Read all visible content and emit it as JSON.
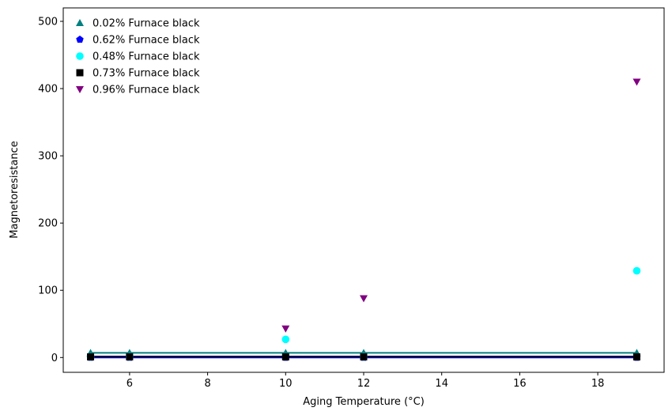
{
  "chart_data": {
    "type": "scatter",
    "title": "",
    "xlabel": "Aging Temperature (°C)",
    "ylabel": "Magnetoresistance",
    "xlim": [
      4.3,
      19.7
    ],
    "ylim": [
      -22,
      520
    ],
    "xticks": [
      6,
      8,
      10,
      12,
      14,
      16,
      18
    ],
    "yticks": [
      0,
      100,
      200,
      300,
      400,
      500
    ],
    "grid": false,
    "legend_position": "top-left",
    "series": [
      {
        "name": "0.02% Furnace black",
        "color": "#008080",
        "marker": "triangle-up",
        "points": [
          [
            5,
            7
          ],
          [
            6,
            7
          ],
          [
            10,
            7
          ],
          [
            12,
            7
          ],
          [
            19,
            7
          ]
        ],
        "fit_line": [
          [
            5,
            7
          ],
          [
            19,
            7
          ]
        ]
      },
      {
        "name": "0.62% Furnace black",
        "color": "#0000ff",
        "marker": "pentagon",
        "points": [
          [
            5,
            0
          ],
          [
            6,
            0
          ],
          [
            10,
            0
          ],
          [
            12,
            0
          ],
          [
            19,
            0
          ]
        ],
        "fit_line": [
          [
            5,
            0
          ],
          [
            19,
            0
          ]
        ]
      },
      {
        "name": "0.48% Furnace black",
        "color": "#00ffff",
        "marker": "circle",
        "points": [
          [
            5,
            1
          ],
          [
            6,
            1
          ],
          [
            10,
            27
          ],
          [
            12,
            1
          ],
          [
            19,
            129
          ]
        ],
        "fit_line": null
      },
      {
        "name": "0.73% Furnace black",
        "color": "#000000",
        "marker": "square",
        "points": [
          [
            5,
            1
          ],
          [
            6,
            1
          ],
          [
            10,
            1
          ],
          [
            12,
            1
          ],
          [
            19,
            1
          ]
        ],
        "fit_line": [
          [
            5,
            1.5
          ],
          [
            19,
            1.5
          ]
        ]
      },
      {
        "name": "0.96% Furnace black",
        "color": "#800080",
        "marker": "triangle-down",
        "points": [
          [
            10,
            43
          ],
          [
            12,
            88
          ],
          [
            19,
            410
          ]
        ],
        "fit_line": null
      }
    ]
  }
}
